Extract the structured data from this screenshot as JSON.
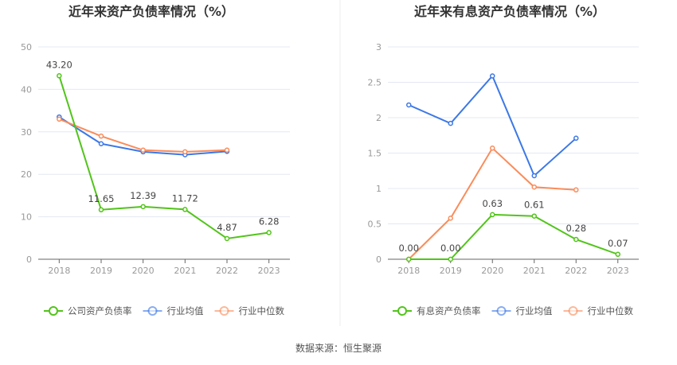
{
  "colors": {
    "company": "#52c41a",
    "avg": "#3c78e6",
    "median": "#fa8c5a"
  },
  "source": "数据来源：恒生聚源",
  "chart_data": [
    {
      "type": "line",
      "title": "近年来资产负债率情况（%）",
      "categories": [
        "2018",
        "2019",
        "2020",
        "2021",
        "2022",
        "2023"
      ],
      "ylim": [
        0,
        50
      ],
      "yticks": [
        "0",
        "10",
        "20",
        "30",
        "40",
        "50"
      ],
      "legend": "bottom",
      "series": [
        {
          "name": "公司资产负债率",
          "key": "company",
          "values": [
            43.2,
            11.65,
            12.39,
            11.72,
            4.87,
            6.28
          ],
          "labels": [
            "43.20",
            "11.65",
            "12.39",
            "11.72",
            "4.87",
            "6.28"
          ]
        },
        {
          "name": "行业均值",
          "key": "avg",
          "values": [
            33.5,
            27.2,
            25.3,
            24.6,
            25.4,
            null
          ]
        },
        {
          "name": "行业中位数",
          "key": "median",
          "values": [
            33.0,
            29.0,
            25.7,
            25.3,
            25.7,
            null
          ]
        }
      ]
    },
    {
      "type": "line",
      "title": "近年来有息资产负债率情况（%）",
      "categories": [
        "2018",
        "2019",
        "2020",
        "2021",
        "2022",
        "2023"
      ],
      "ylim": [
        0,
        3
      ],
      "yticks": [
        "0",
        "0.5",
        "1",
        "1.5",
        "2",
        "2.5",
        "3"
      ],
      "legend": "bottom",
      "series": [
        {
          "name": "有息资产负债率",
          "key": "company",
          "values": [
            0.0,
            0.0,
            0.63,
            0.61,
            0.28,
            0.07
          ],
          "labels": [
            "0.00",
            "0.00",
            "0.63",
            "0.61",
            "0.28",
            "0.07"
          ]
        },
        {
          "name": "行业均值",
          "key": "avg",
          "values": [
            2.18,
            1.92,
            2.59,
            1.18,
            1.71,
            null
          ]
        },
        {
          "name": "行业中位数",
          "key": "median",
          "values": [
            0.0,
            0.58,
            1.57,
            1.02,
            0.98,
            null
          ]
        }
      ]
    }
  ]
}
